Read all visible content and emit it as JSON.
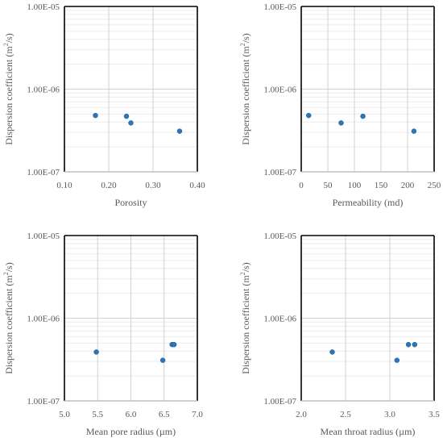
{
  "chart_data": [
    {
      "type": "scatter",
      "title": "",
      "xlabel": "Porosity",
      "ylabel": "Dispersion coefficient (m²/s)",
      "ylabel_parts": [
        "Dispersion coefficient (m",
        "2",
        "/s)"
      ],
      "xlim": [
        0.1,
        0.4
      ],
      "x_ticks": [
        0.1,
        0.2,
        0.3,
        0.4
      ],
      "x_tick_labels": [
        "0.10",
        "0.20",
        "0.30",
        "0.40"
      ],
      "ylim": [
        1e-07,
        1e-05
      ],
      "y_scale": "log",
      "y_ticks": [
        1e-07,
        1e-06,
        1e-05
      ],
      "y_tick_labels": [
        "1.00E-07",
        "1.00E-06",
        "1.00E-05"
      ],
      "grid": true,
      "marker_color": "#2E75B6",
      "series": [
        {
          "x": [
            0.17,
            0.24,
            0.25,
            0.36
          ],
          "y": [
            4.8e-07,
            4.7e-07,
            3.9e-07,
            3.1e-07
          ]
        }
      ]
    },
    {
      "type": "scatter",
      "title": "",
      "xlabel": "Permeability (md)",
      "ylabel": "Dispersion coefficient (m²/s)",
      "ylabel_parts": [
        "Dispersion coefficient (m",
        "2",
        "/s)"
      ],
      "xlim": [
        0,
        250
      ],
      "x_ticks": [
        0,
        50,
        100,
        150,
        200,
        250
      ],
      "x_tick_labels": [
        "0",
        "50",
        "100",
        "150",
        "200",
        "250"
      ],
      "ylim": [
        1e-07,
        1e-05
      ],
      "y_scale": "log",
      "y_ticks": [
        1e-07,
        1e-06,
        1e-05
      ],
      "y_tick_labels": [
        "1.00E-07",
        "1.00E-06",
        "1.00E-05"
      ],
      "grid": true,
      "marker_color": "#2E75B6",
      "series": [
        {
          "x": [
            14,
            75,
            116,
            212
          ],
          "y": [
            4.8e-07,
            3.9e-07,
            4.7e-07,
            3.1e-07
          ]
        }
      ]
    },
    {
      "type": "scatter",
      "title": "",
      "xlabel": "Mean pore radius (µm)",
      "ylabel": "Dispersion coefficient (m²/s)",
      "ylabel_parts": [
        "Dispersion coefficient (m",
        "2",
        "/s)"
      ],
      "xlim": [
        5.0,
        7.0
      ],
      "x_ticks": [
        5.0,
        5.5,
        6.0,
        6.5,
        7.0
      ],
      "x_tick_labels": [
        "5.0",
        "5.5",
        "6.0",
        "6.5",
        "7.0"
      ],
      "ylim": [
        1e-07,
        1e-05
      ],
      "y_scale": "log",
      "y_ticks": [
        1e-07,
        1e-06,
        1e-05
      ],
      "y_tick_labels": [
        "1.00E-07",
        "1.00E-06",
        "1.00E-05"
      ],
      "grid": true,
      "marker_color": "#2E75B6",
      "series": [
        {
          "x": [
            5.48,
            6.48,
            6.62,
            6.65
          ],
          "y": [
            3.9e-07,
            3.1e-07,
            4.8e-07,
            4.8e-07
          ]
        }
      ]
    },
    {
      "type": "scatter",
      "title": "",
      "xlabel": "Mean throat radius (µm)",
      "ylabel": "Dispersion coefficient (m²/s)",
      "ylabel_parts": [
        "Dispersion coefficient (m",
        "2",
        "/s)"
      ],
      "xlim": [
        2.0,
        3.5
      ],
      "x_ticks": [
        2.0,
        2.5,
        3.0,
        3.5
      ],
      "x_tick_labels": [
        "2.0",
        "2.5",
        "3.0",
        "3.5"
      ],
      "ylim": [
        1e-07,
        1e-05
      ],
      "y_scale": "log",
      "y_ticks": [
        1e-07,
        1e-06,
        1e-05
      ],
      "y_tick_labels": [
        "1.00E-07",
        "1.00E-06",
        "1.00E-05"
      ],
      "grid": true,
      "marker_color": "#2E75B6",
      "series": [
        {
          "x": [
            2.35,
            3.08,
            3.21,
            3.28
          ],
          "y": [
            3.9e-07,
            3.1e-07,
            4.8e-07,
            4.8e-07
          ]
        }
      ]
    }
  ]
}
